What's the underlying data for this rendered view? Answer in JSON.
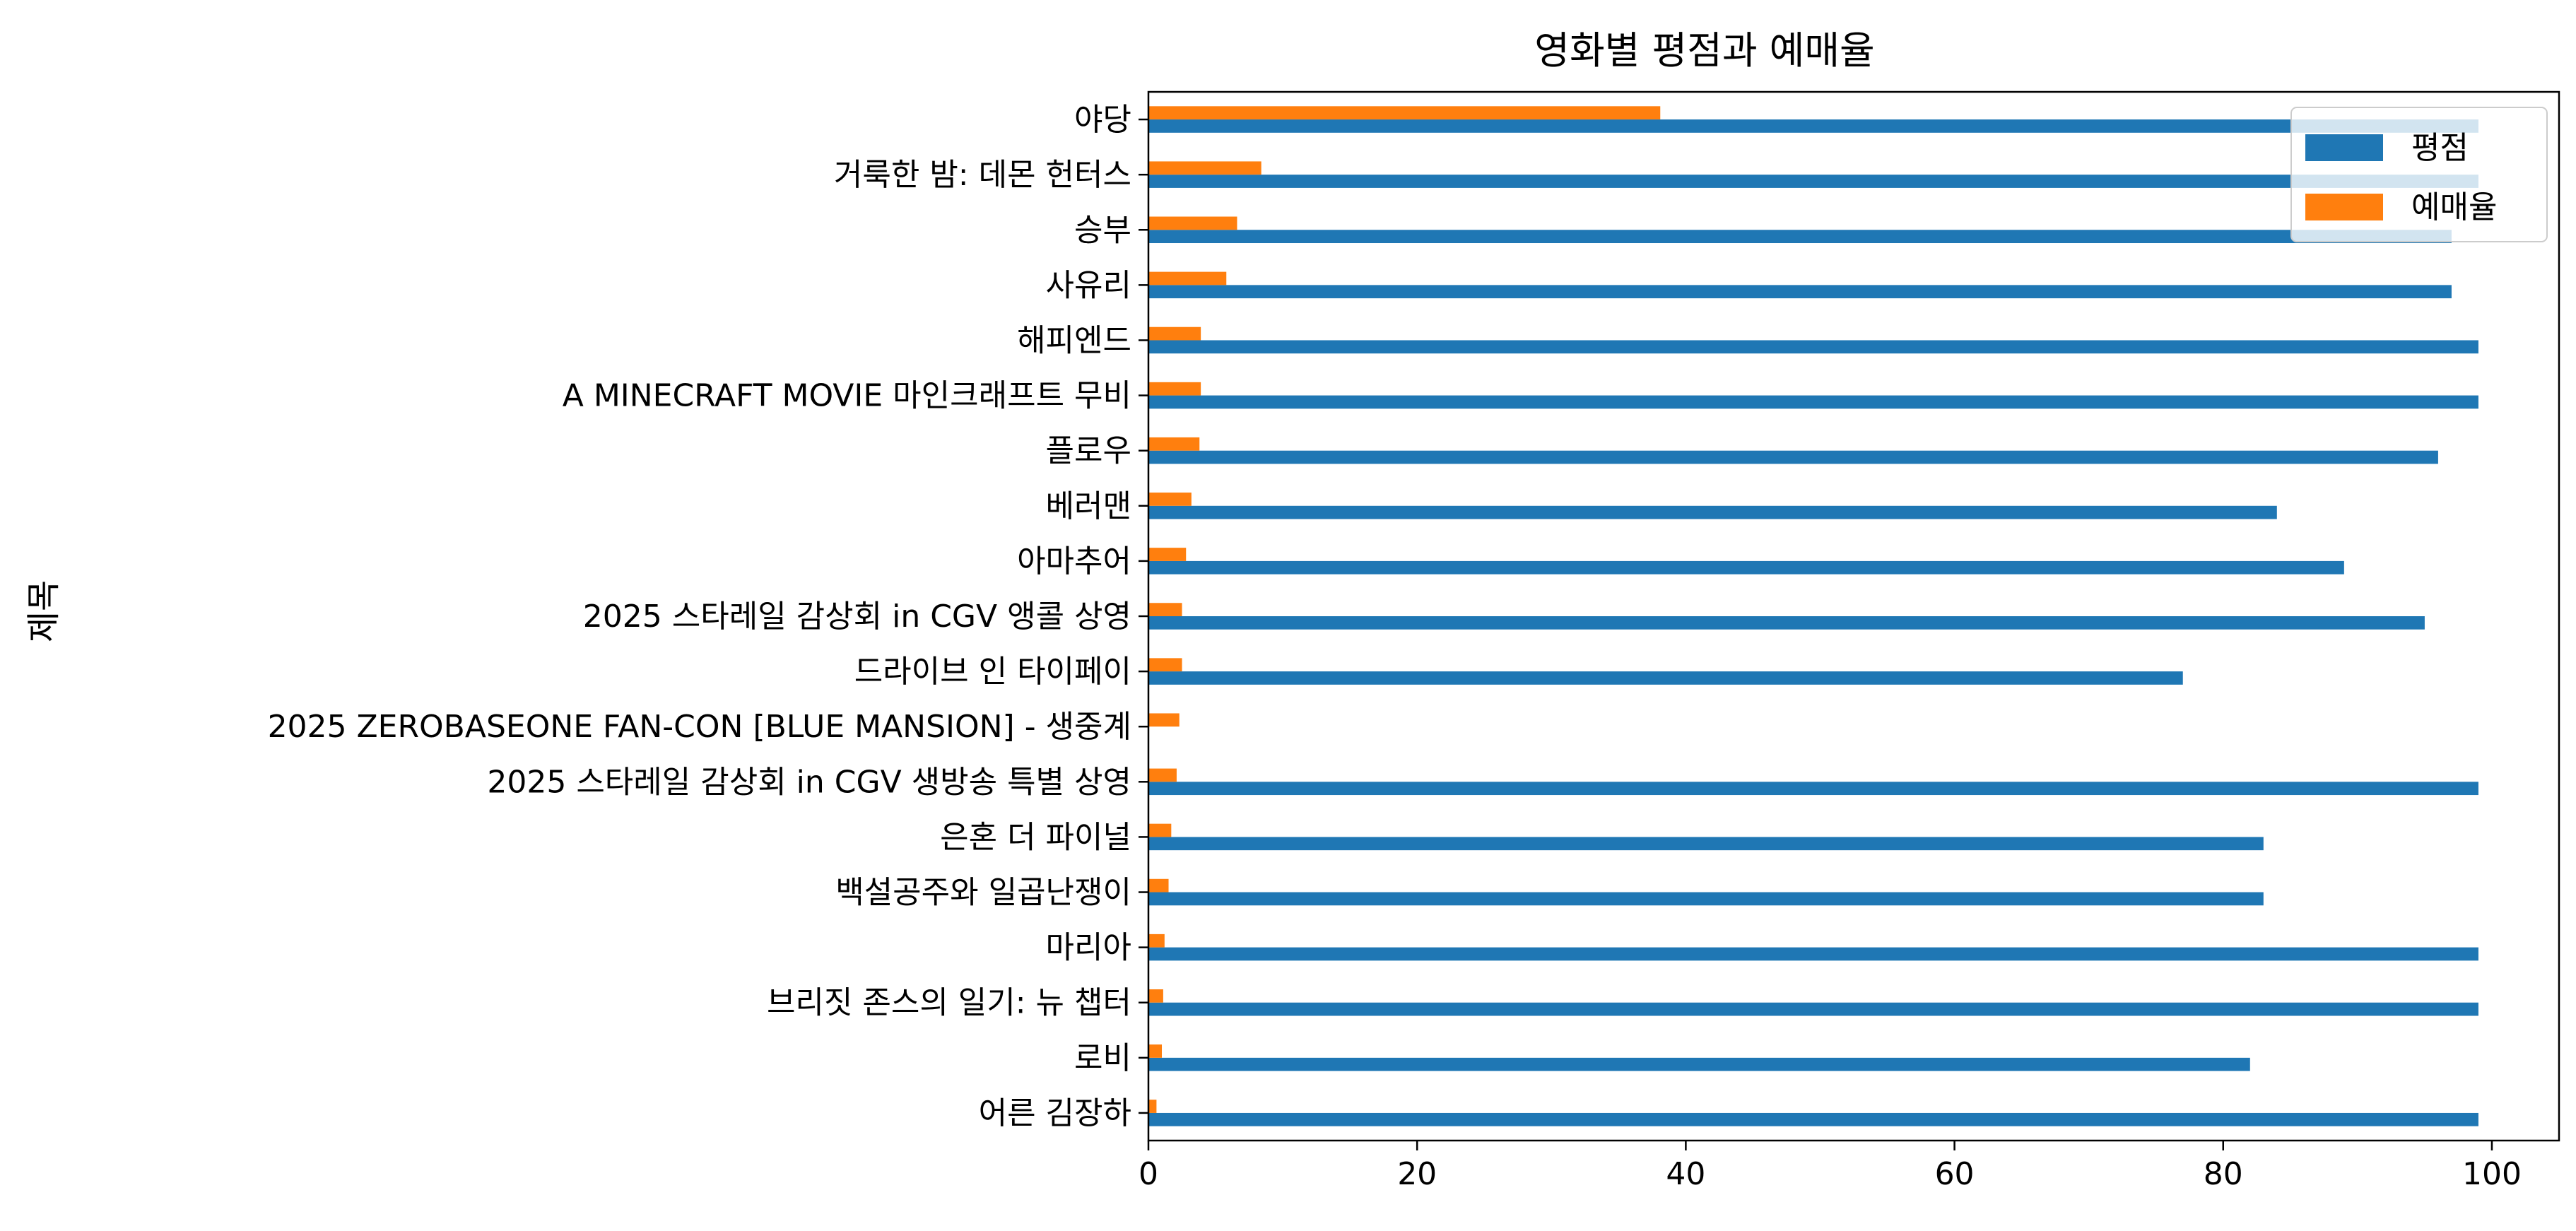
{
  "chart_data": {
    "type": "bar",
    "orientation": "horizontal",
    "title": "영화별 평점과 예매율",
    "xlabel": "",
    "ylabel": "제목",
    "xlim": [
      0,
      105
    ],
    "xticks": [
      "0",
      "20",
      "40",
      "60",
      "80",
      "100"
    ],
    "grid": false,
    "legend": "top-right",
    "categories": [
      "어른 김장하",
      "로비",
      "브리짓 존스의 일기: 뉴 챕터",
      "마리아",
      "백설공주와 일곱난쟁이",
      "은혼 더 파이널",
      "2025 스타레일 감상회 in CGV 생방송 특별 상영",
      "2025 ZEROBASEONE FAN-CON [BLUE MANSION] - 생중계",
      "드라이브 인 타이페이",
      "2025 스타레일 감상회 in CGV 앵콜 상영",
      "아마추어",
      "베러맨",
      "플로우",
      "A MINECRAFT MOVIE 마인크래프트 무비",
      "해피엔드",
      "사유리",
      "승부",
      "거룩한 밤: 데몬 헌터스",
      "야당"
    ],
    "series": [
      {
        "name": "평점",
        "color": "#1f77b4",
        "values": [
          99,
          82,
          99,
          99,
          83,
          83,
          99,
          0,
          77,
          95,
          89,
          84,
          96,
          99,
          99,
          97,
          97,
          99,
          99
        ]
      },
      {
        "name": "예매율",
        "color": "#ff7f0e",
        "values": [
          0.6,
          1.0,
          1.1,
          1.2,
          1.5,
          1.7,
          2.1,
          2.3,
          2.5,
          2.5,
          2.8,
          3.2,
          3.8,
          3.9,
          3.9,
          5.8,
          6.6,
          8.4,
          38.1
        ]
      }
    ]
  }
}
